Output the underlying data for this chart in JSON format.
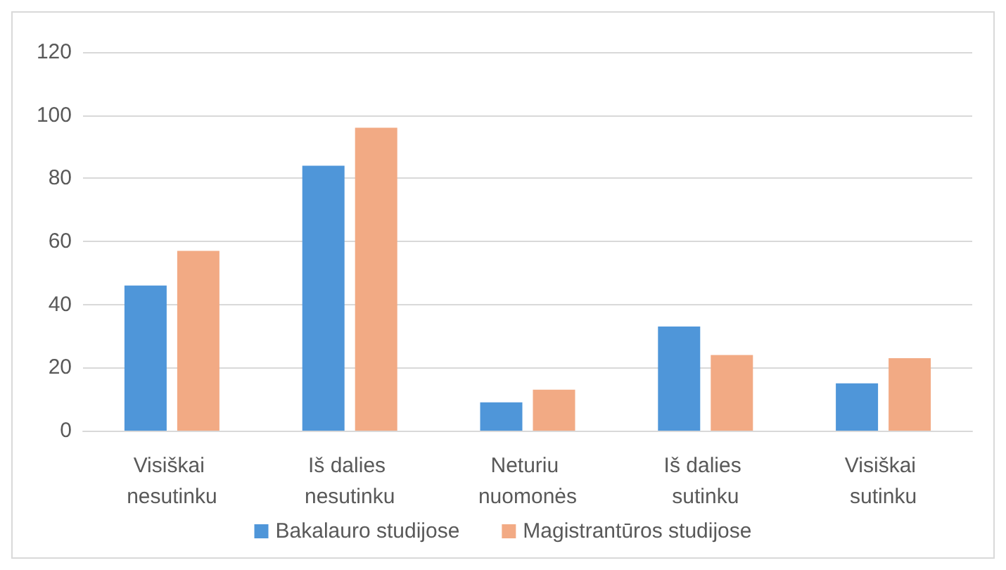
{
  "chart_data": {
    "type": "bar",
    "categories": [
      "Visiškai nesutinku",
      "Iš dalies nesutinku",
      "Neturiu nuomonės",
      "Iš dalies sutinku",
      "Visiškai sutinku"
    ],
    "series": [
      {
        "name": "Bakalauro studijose",
        "color": "#4f96d9",
        "values": [
          46,
          84,
          9,
          33,
          15
        ]
      },
      {
        "name": "Magistrantūros studijose",
        "color": "#f2aa84",
        "values": [
          57,
          96,
          13,
          24,
          23
        ]
      }
    ],
    "ylim": [
      0,
      120
    ],
    "yticks": [
      0,
      20,
      40,
      60,
      80,
      100,
      120
    ],
    "grid": "y",
    "legend": "bottom"
  }
}
